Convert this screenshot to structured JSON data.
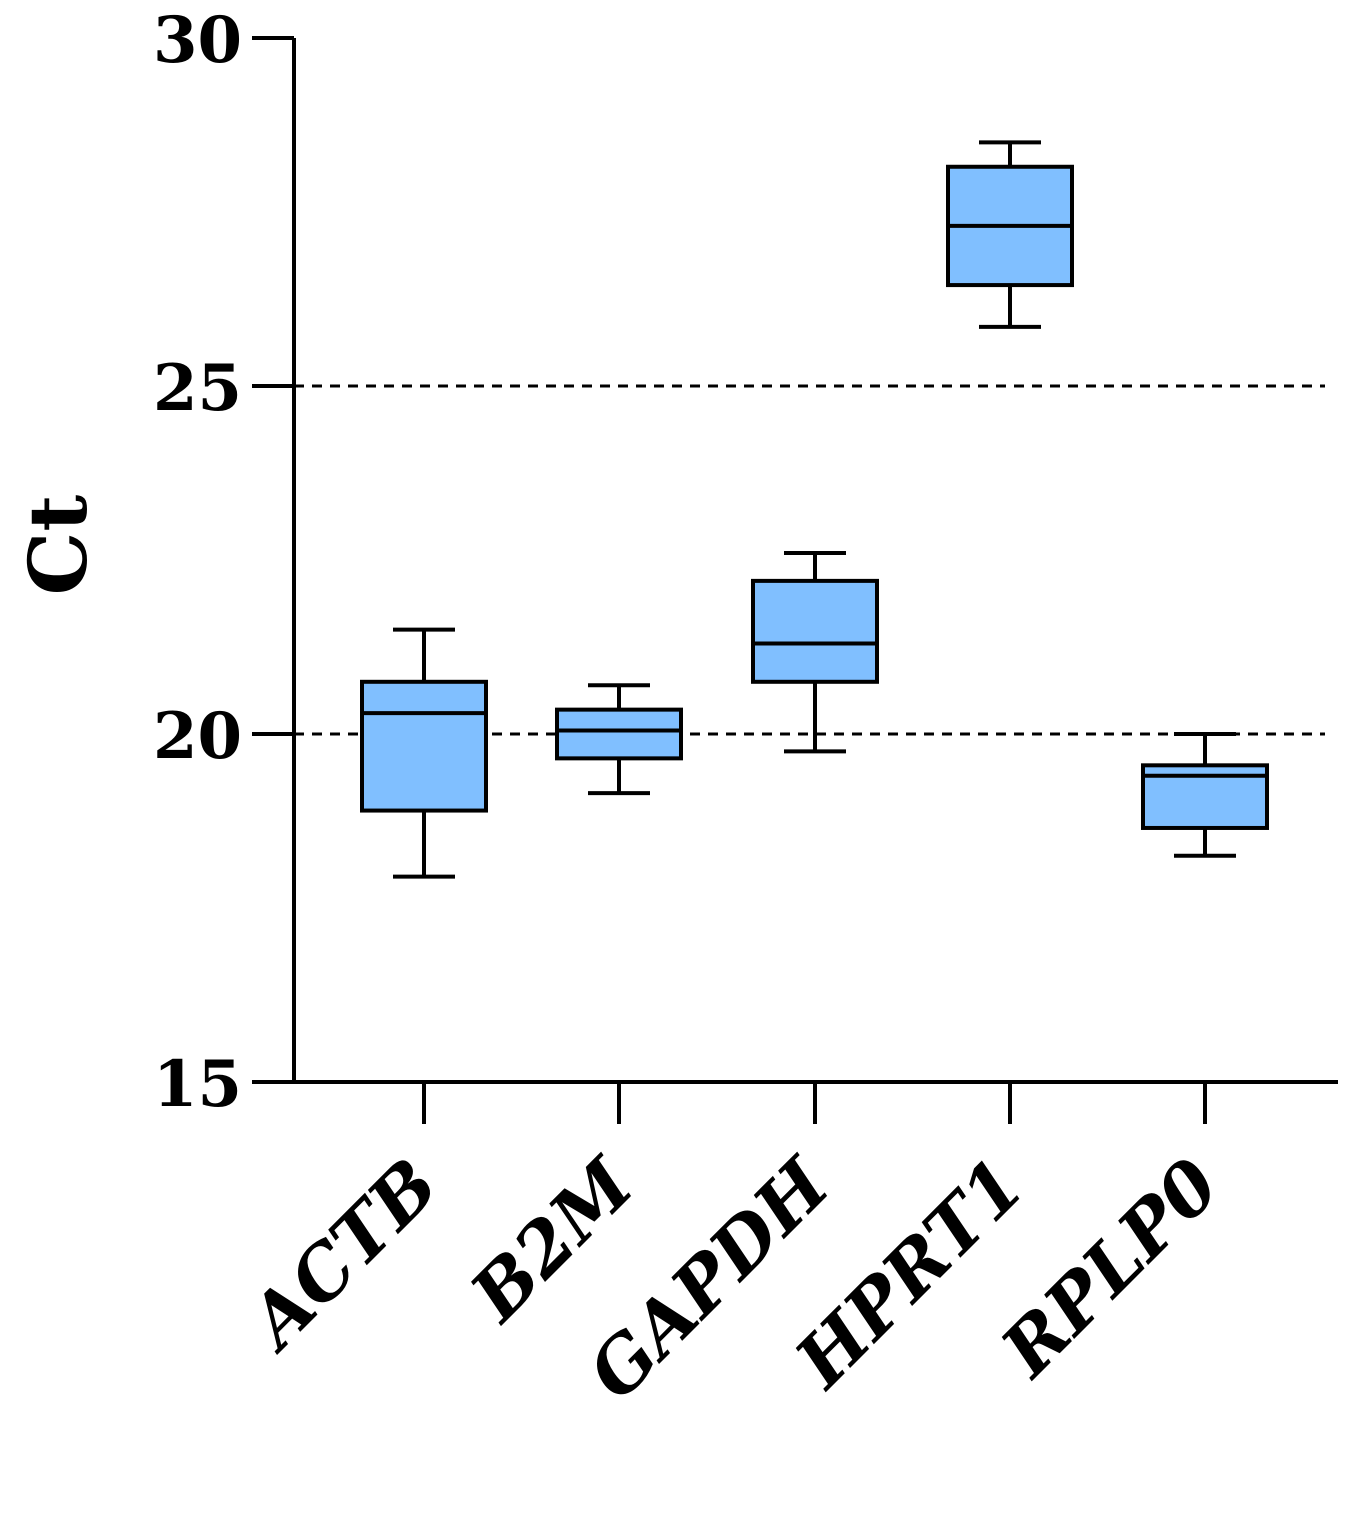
{
  "chart_data": {
    "type": "box",
    "title": "",
    "xlabel": "",
    "ylabel": "Ct",
    "ylim": [
      15,
      30
    ],
    "yticks": [
      "15",
      "20",
      "25",
      "30"
    ],
    "reference_lines": [
      20,
      25
    ],
    "box_color": "#80BFFF",
    "categories": [
      "ACTB",
      "B2M",
      "GAPDH",
      "HPRT1",
      "RPLP0"
    ],
    "boxes": [
      {
        "name": "ACTB",
        "min": 17.95,
        "q1": 18.9,
        "median": 20.3,
        "q3": 20.75,
        "max": 21.5
      },
      {
        "name": "B2M",
        "min": 19.15,
        "q1": 19.65,
        "median": 20.05,
        "q3": 20.35,
        "max": 20.7
      },
      {
        "name": "GAPDH",
        "min": 19.75,
        "q1": 20.75,
        "median": 21.3,
        "q3": 22.2,
        "max": 22.6
      },
      {
        "name": "HPRT1",
        "min": 25.85,
        "q1": 26.45,
        "median": 27.3,
        "q3": 28.15,
        "max": 28.5
      },
      {
        "name": "RPLP0",
        "min": 18.25,
        "q1": 18.65,
        "median": 19.4,
        "q3": 19.55,
        "max": 20.0
      }
    ]
  }
}
